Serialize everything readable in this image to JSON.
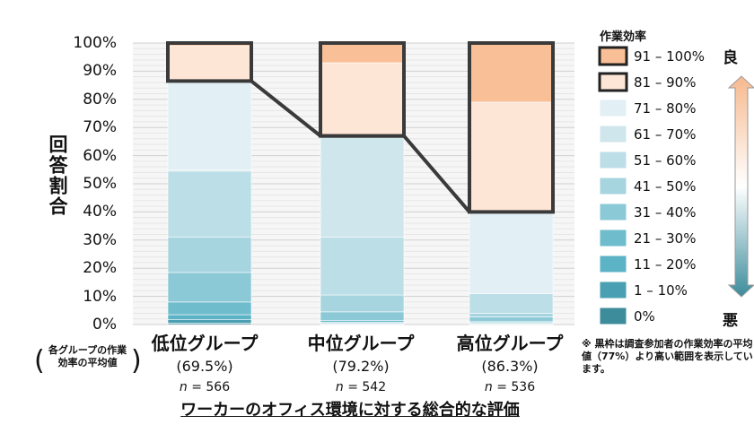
{
  "chart_data": {
    "type": "bar",
    "stacked": true,
    "ylabel": "回答割合",
    "xlabel": "ワーカーのオフィス環境に対する総合的な評価",
    "ylim": [
      0,
      100
    ],
    "y_ticks": [
      "0%",
      "10%",
      "20%",
      "30%",
      "40%",
      "50%",
      "60%",
      "70%",
      "80%",
      "90%",
      "100%"
    ],
    "grid": true,
    "categories": [
      "低位グループ",
      "中位グループ",
      "高位グループ"
    ],
    "group_averages": [
      "(69.5%)",
      "(79.2%)",
      "(86.3%)"
    ],
    "group_n_prefix": "n",
    "group_n": [
      "= 566",
      "= 542",
      "= 536"
    ],
    "average_note": "各グループの作業効率の平均値",
    "average_note_paren_open": "(",
    "average_note_paren_close": ")",
    "legend_title": "作業効率",
    "legend_position": "right",
    "series": [
      {
        "name": "0%",
        "color": "#3c8c9c",
        "values": [
          0.5,
          0.2,
          0.2
        ]
      },
      {
        "name": "1 – 10%",
        "color": "#4aa0b2",
        "values": [
          1.2,
          0.3,
          0.3
        ]
      },
      {
        "name": "11 – 20%",
        "color": "#5bb3c5",
        "values": [
          1.8,
          0.3,
          0.3
        ]
      },
      {
        "name": "21 – 30%",
        "color": "#6fbccd",
        "values": [
          4.5,
          0.7,
          0.4
        ]
      },
      {
        "name": "31 – 40%",
        "color": "#8cc9d6",
        "values": [
          10.5,
          3.0,
          1.5
        ]
      },
      {
        "name": "41 – 50%",
        "color": "#a6d4df",
        "values": [
          12.5,
          6.0,
          1.3
        ]
      },
      {
        "name": "51 – 60%",
        "color": "#bcdee6",
        "values": [
          23.5,
          20.5,
          7.0
        ]
      },
      {
        "name": "61 – 70%",
        "color": "#d0e6ed",
        "values": [
          0.5,
          36.0,
          0.0
        ]
      },
      {
        "name": "71 – 80%",
        "color": "#e2eff4",
        "values": [
          31.5,
          0.0,
          29.0
        ]
      },
      {
        "name": "81 – 90%",
        "color": "#fde6d6",
        "values": [
          12.5,
          26.0,
          39.0
        ]
      },
      {
        "name": "91 – 100%",
        "color": "#f9c097",
        "values": [
          0.5,
          7.0,
          21.0
        ]
      }
    ],
    "highlight_threshold": [
      86.5,
      67.0,
      40.0
    ],
    "highlight_series": [
      "81 – 90%",
      "91 – 100%"
    ]
  },
  "legend": {
    "good": "良",
    "bad": "悪"
  },
  "footnote": "※ 黒枠は調査参加者の作業効率の平均値（77%）より高い範囲を表示しています。"
}
